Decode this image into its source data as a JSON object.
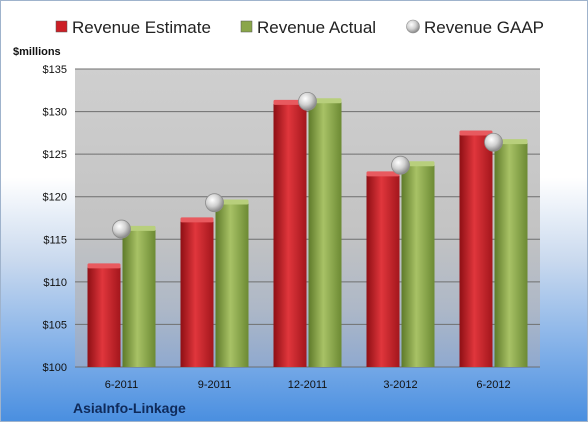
{
  "chart_data": {
    "type": "bar",
    "title": "",
    "ylabel": "$millions",
    "xlabel": "",
    "categories": [
      "6-2011",
      "9-2011",
      "12-2011",
      "3-2012",
      "6-2012"
    ],
    "series": [
      {
        "name": "Revenue Estimate",
        "kind": "bar",
        "color": "#cc1f26",
        "values": [
          111.7,
          117.1,
          130.9,
          122.5,
          127.3
        ]
      },
      {
        "name": "Revenue Actual",
        "kind": "bar",
        "color": "#8aa64a",
        "values": [
          116.1,
          119.2,
          131.1,
          123.7,
          126.3
        ]
      },
      {
        "name": "Revenue GAAP",
        "kind": "marker",
        "color": "#c8c8c8",
        "values": [
          116.2,
          119.3,
          131.2,
          123.7,
          126.4
        ]
      }
    ],
    "ylim": [
      100,
      135
    ],
    "yticks": [
      100,
      105,
      110,
      115,
      120,
      125,
      130,
      135
    ],
    "ytick_labels": [
      "$100",
      "$105",
      "$110",
      "$115",
      "$120",
      "$125",
      "$130",
      "$135"
    ],
    "grid": true,
    "legend": "top"
  },
  "footer": {
    "company": "AsiaInfo-Linkage"
  }
}
